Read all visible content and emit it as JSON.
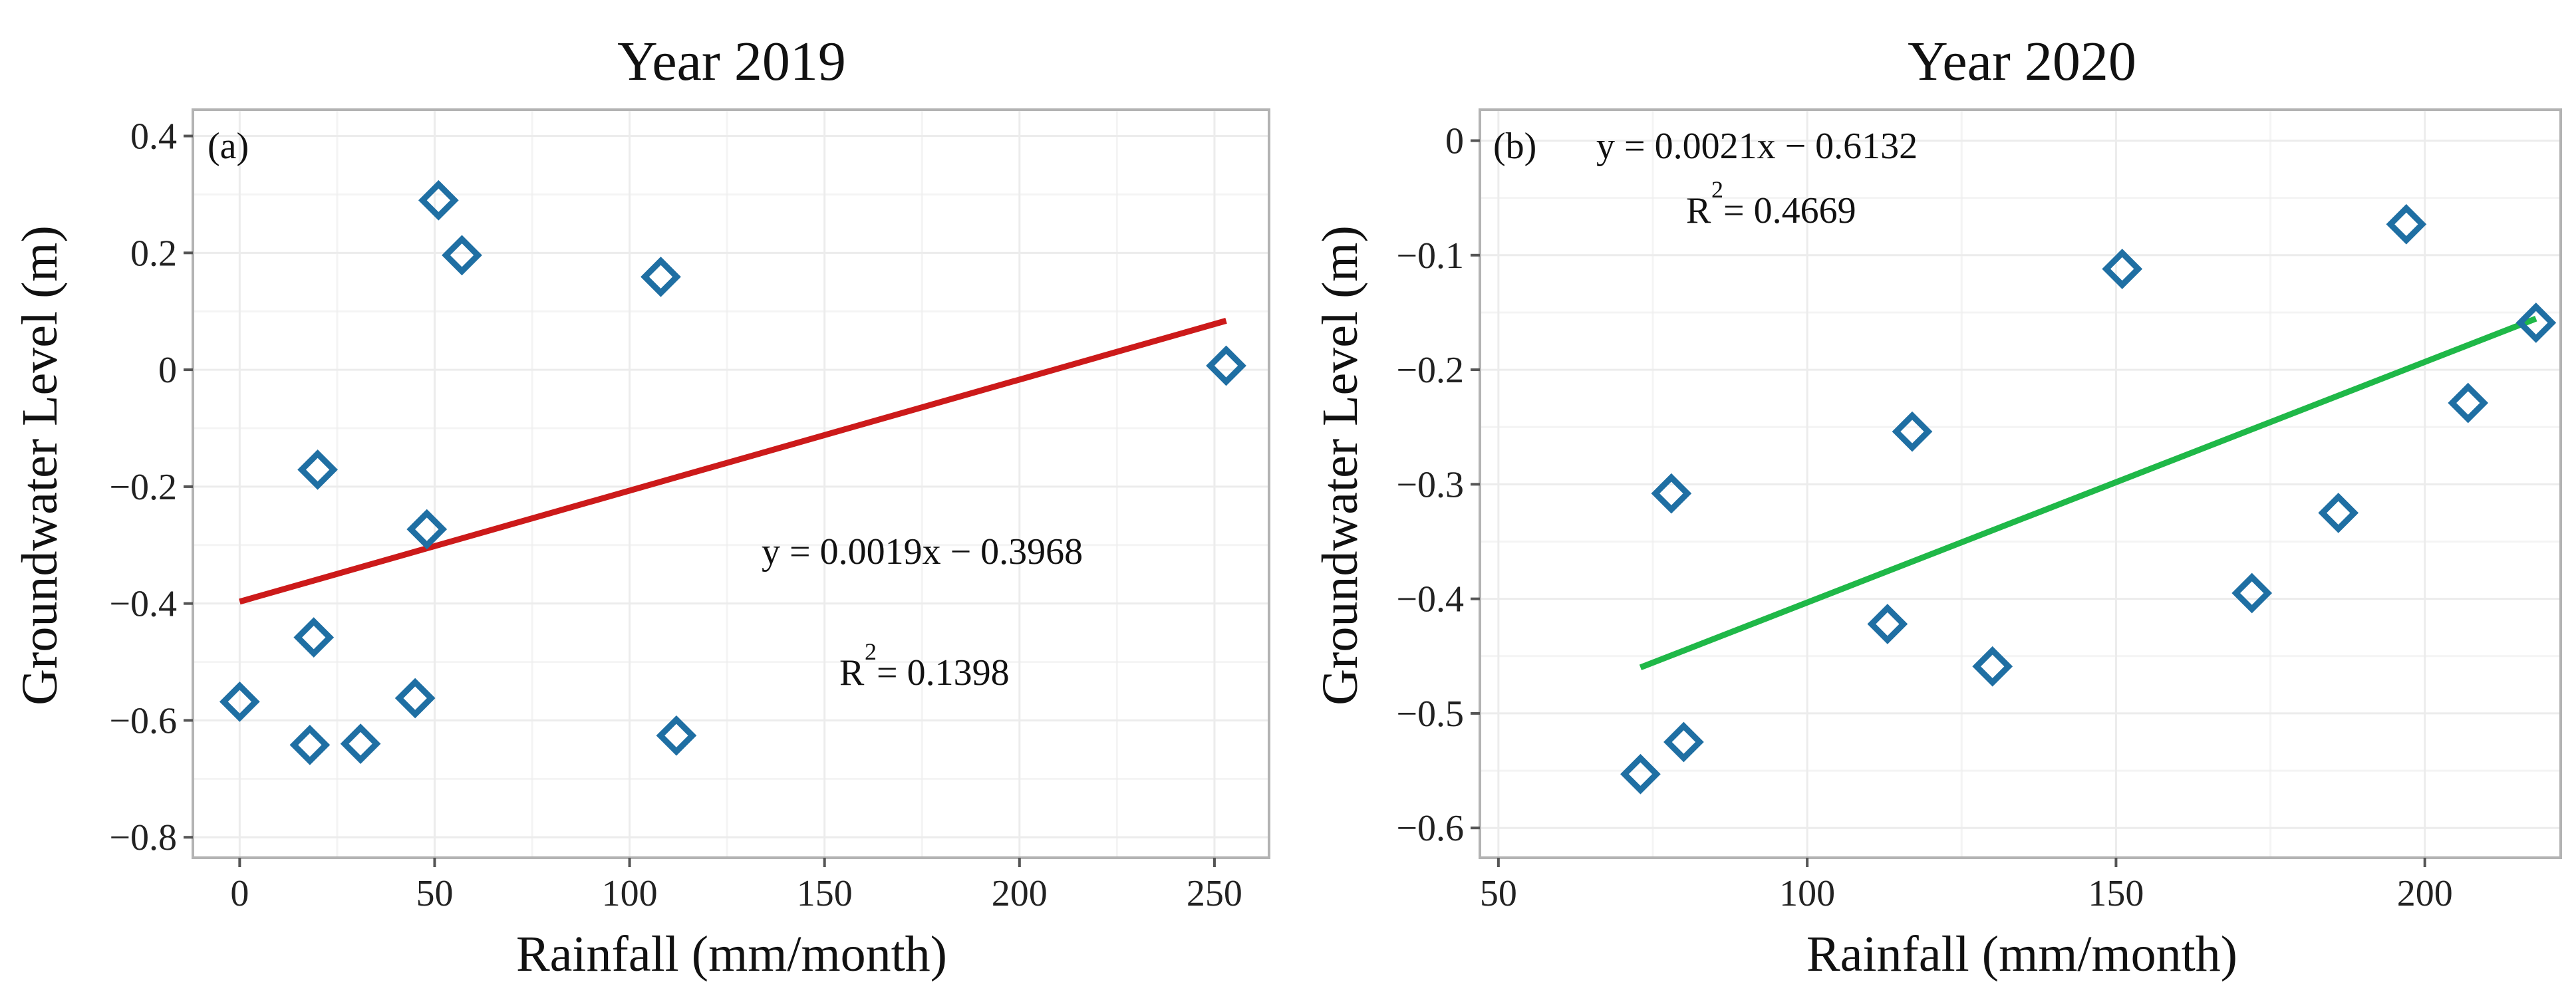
{
  "chart_data": [
    {
      "type": "scatter",
      "title": "Year 2019",
      "panel_label": "(a)",
      "xlabel": "Rainfall (mm/month)",
      "ylabel": "Groundwater Level (m)",
      "xlim": [
        -12,
        264
      ],
      "ylim": [
        -0.835,
        0.445
      ],
      "xticks": [
        0,
        50,
        100,
        150,
        200,
        250
      ],
      "xtick_labels": [
        "0",
        "50",
        "100",
        "150",
        "200",
        "250"
      ],
      "yticks": [
        0.4,
        0.2,
        0,
        -0.2,
        -0.4,
        -0.6,
        -0.8
      ],
      "ytick_labels": [
        "0.4",
        "0.2",
        "0",
        "−0.2",
        "−0.4",
        "−0.6",
        "−0.8"
      ],
      "grid": true,
      "marker": "diamond",
      "marker_color": "#1f6fa3",
      "points": [
        {
          "x": 0,
          "y": -0.568
        },
        {
          "x": 18,
          "y": -0.642
        },
        {
          "x": 19,
          "y": -0.458
        },
        {
          "x": 20,
          "y": -0.171
        },
        {
          "x": 31,
          "y": -0.64
        },
        {
          "x": 45,
          "y": -0.562
        },
        {
          "x": 48,
          "y": -0.273
        },
        {
          "x": 51,
          "y": 0.29
        },
        {
          "x": 57,
          "y": 0.196
        },
        {
          "x": 108,
          "y": 0.159
        },
        {
          "x": 112,
          "y": -0.626
        },
        {
          "x": 253,
          "y": 0.007
        }
      ],
      "trendline": {
        "slope": 0.0019,
        "intercept": -0.3968,
        "x_from": 0,
        "x_to": 253,
        "color": "#cc1a1a"
      },
      "equation_text": "y = 0.0019x − 0.3968",
      "r2_label": "R",
      "r2_sup": "2",
      "r2_value": " = 0.1398"
    },
    {
      "type": "scatter",
      "title": "Year 2020",
      "panel_label": "(b)",
      "xlabel": "Rainfall (mm/month)",
      "ylabel": "Groundwater Level (m)",
      "xlim": [
        47,
        222
      ],
      "ylim": [
        -0.626,
        0.027
      ],
      "xticks": [
        50,
        100,
        150,
        200
      ],
      "xtick_labels": [
        "50",
        "100",
        "150",
        "200"
      ],
      "yticks": [
        0,
        -0.1,
        -0.2,
        -0.3,
        -0.4,
        -0.5,
        -0.6
      ],
      "ytick_labels": [
        "0",
        "−0.1",
        "−0.2",
        "−0.3",
        "−0.4",
        "−0.5",
        "−0.6"
      ],
      "grid": true,
      "marker": "diamond",
      "marker_color": "#1f6fa3",
      "points": [
        {
          "x": 73,
          "y": -0.553
        },
        {
          "x": 78,
          "y": -0.308
        },
        {
          "x": 80,
          "y": -0.525
        },
        {
          "x": 113,
          "y": -0.422
        },
        {
          "x": 117,
          "y": -0.254
        },
        {
          "x": 130,
          "y": -0.459
        },
        {
          "x": 151,
          "y": -0.112
        },
        {
          "x": 172,
          "y": -0.395
        },
        {
          "x": 186,
          "y": -0.325
        },
        {
          "x": 197,
          "y": -0.073
        },
        {
          "x": 207,
          "y": -0.229
        },
        {
          "x": 218,
          "y": -0.159
        }
      ],
      "trendline": {
        "slope": 0.0021,
        "intercept": -0.6132,
        "x_from": 73,
        "x_to": 218,
        "color": "#1fb848"
      },
      "equation_text": "y = 0.0021x − 0.6132",
      "r2_label": "R",
      "r2_sup": "2",
      "r2_value": " = 0.4669"
    }
  ]
}
